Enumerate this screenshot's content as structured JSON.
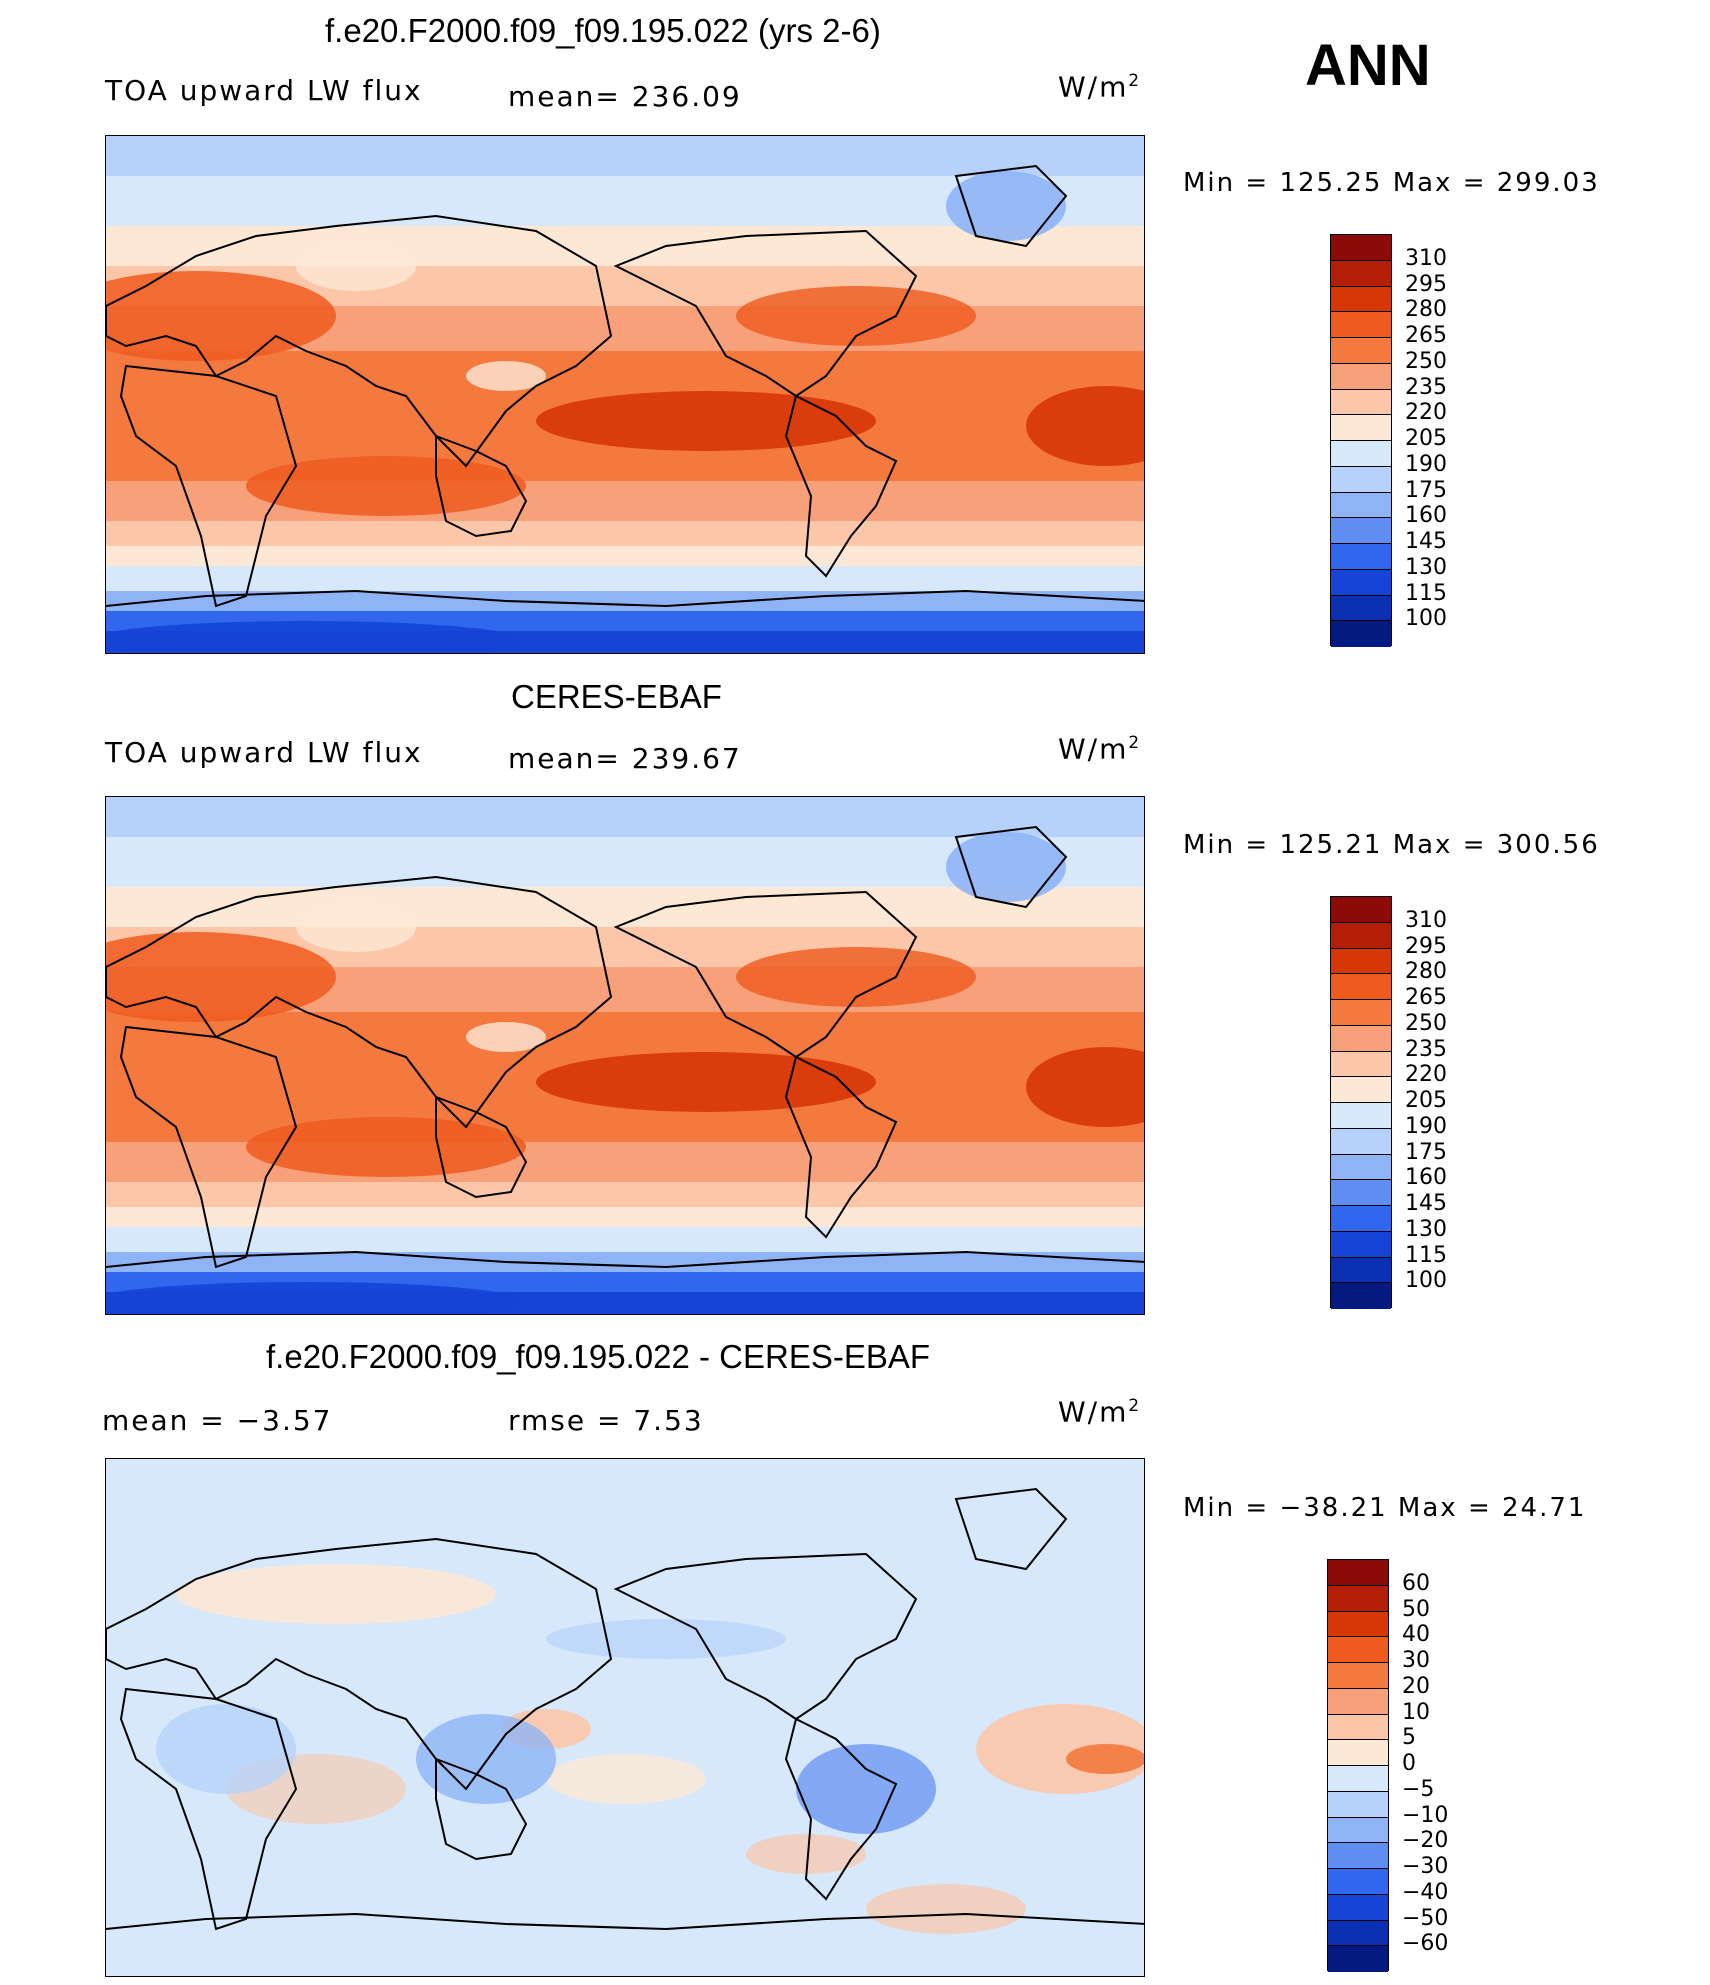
{
  "season": "ANN",
  "panels": [
    {
      "title": "f.e20.F2000.f09_f09.195.022 (yrs 2-6)",
      "left_label": "TOA upward LW flux",
      "center_label": "mean=  236.09",
      "units_base": "W/m",
      "units_exp": "2",
      "minmax": "Min  =  125.25  Max  =  299.03",
      "colorbar_labels": [
        "310",
        "295",
        "280",
        "265",
        "250",
        "235",
        "220",
        "205",
        "190",
        "175",
        "160",
        "145",
        "130",
        "115",
        "100"
      ],
      "colorbar_colors": [
        "#8c0a08",
        "#b51e06",
        "#d73606",
        "#ef5a1e",
        "#f4793f",
        "#f7a07a",
        "#fbc7a8",
        "#fde8d6",
        "#d7e8fb",
        "#b6d2fa",
        "#8fb4f6",
        "#5f8ef2",
        "#3166ee",
        "#1544d6",
        "#0a2fb0",
        "#041a80"
      ],
      "type": "field"
    },
    {
      "title": "CERES-EBAF",
      "left_label": "TOA upward LW flux",
      "center_label": "mean=  239.67",
      "units_base": "W/m",
      "units_exp": "2",
      "minmax": "Min  =  125.21  Max  =  300.56",
      "colorbar_labels": [
        "310",
        "295",
        "280",
        "265",
        "250",
        "235",
        "220",
        "205",
        "190",
        "175",
        "160",
        "145",
        "130",
        "115",
        "100"
      ],
      "colorbar_colors": [
        "#8c0a08",
        "#b51e06",
        "#d73606",
        "#ef5a1e",
        "#f4793f",
        "#f7a07a",
        "#fbc7a8",
        "#fde8d6",
        "#d7e8fb",
        "#b6d2fa",
        "#8fb4f6",
        "#5f8ef2",
        "#3166ee",
        "#1544d6",
        "#0a2fb0",
        "#041a80"
      ],
      "type": "field"
    },
    {
      "title": "f.e20.F2000.f09_f09.195.022 - CERES-EBAF",
      "left_label": "mean  =    −3.57",
      "center_label": "rmse  =     7.53",
      "units_base": "W/m",
      "units_exp": "2",
      "minmax": "Min  =  −38.21  Max  =    24.71",
      "colorbar_labels": [
        "60",
        "50",
        "40",
        "30",
        "20",
        "10",
        "5",
        "0",
        "−5",
        "−10",
        "−20",
        "−30",
        "−40",
        "−50",
        "−60"
      ],
      "colorbar_colors": [
        "#8c0a08",
        "#b51e06",
        "#d73606",
        "#ef5a1e",
        "#f4793f",
        "#f7a07a",
        "#fbc7a8",
        "#fde8d6",
        "#d7e8fb",
        "#b6d2fa",
        "#8fb4f6",
        "#5f8ef2",
        "#3166ee",
        "#1544d6",
        "#0a2fb0",
        "#041a80"
      ],
      "type": "diff"
    }
  ]
}
